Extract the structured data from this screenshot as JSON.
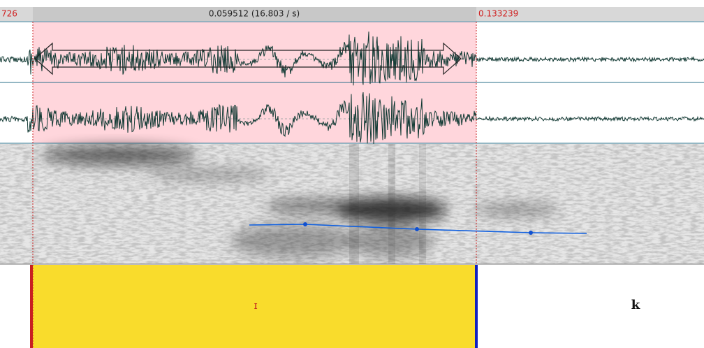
{
  "header": {
    "left": "726",
    "selection": "0.059512 (16.803 / s)",
    "right": "0.133239"
  },
  "tier": {
    "intervals": [
      {
        "label": "ɪ"
      },
      {
        "label": "k"
      }
    ]
  }
}
